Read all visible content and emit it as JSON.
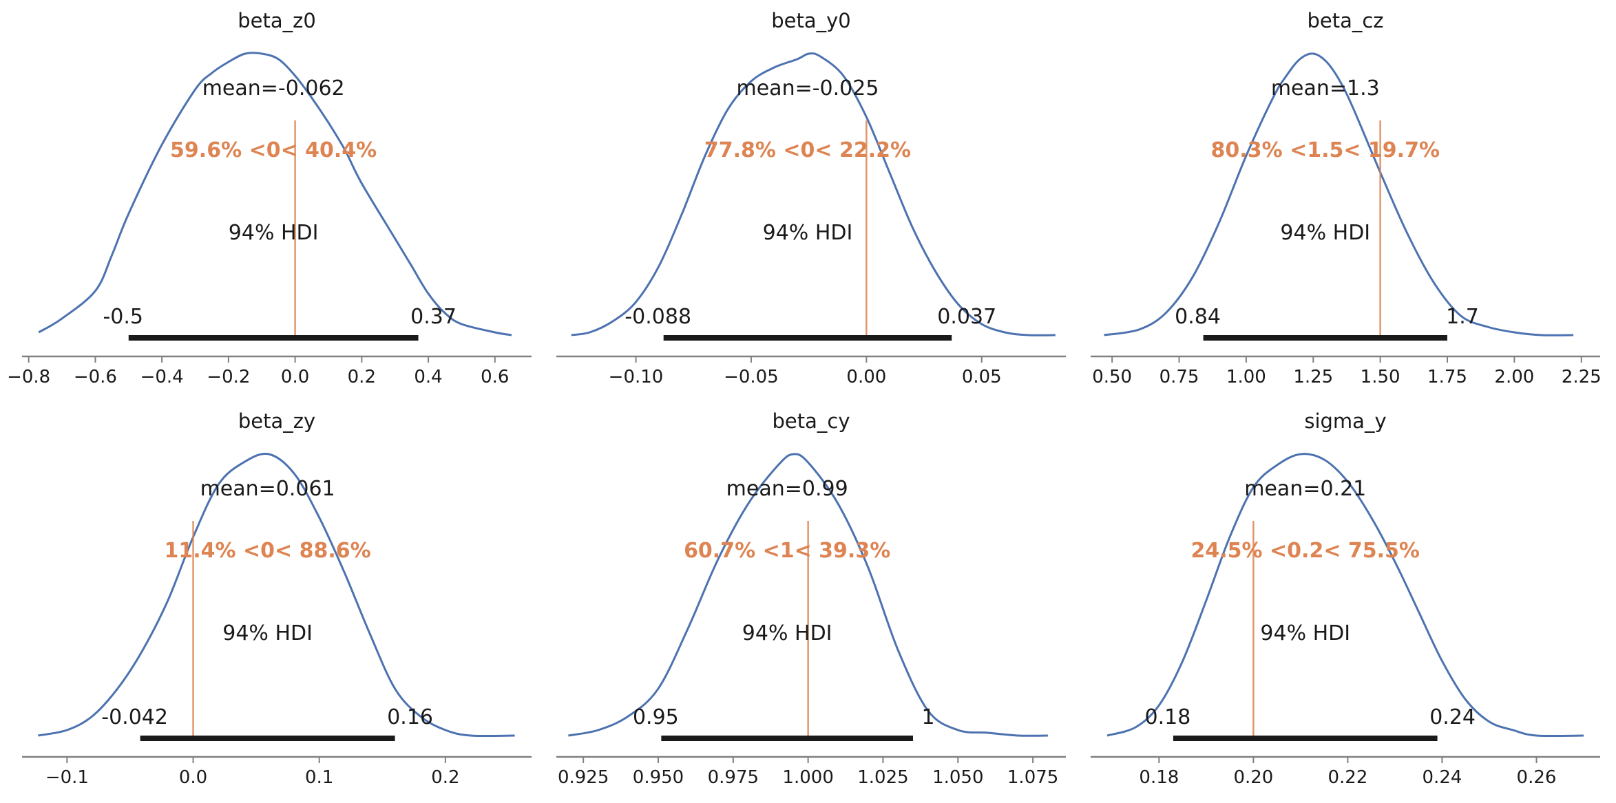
{
  "colors": {
    "density": "#4c72b0",
    "reference": "#dd8452",
    "hdi": "#1a1a1a",
    "axis": "#808080"
  },
  "chart_data": [
    {
      "type": "area",
      "title": "beta_z0",
      "mean_label": "mean=-0.062",
      "ref_value": 0,
      "ref_label": "59.6% <0< 40.4%",
      "hdi_label": "94% HDI",
      "hdi": [
        -0.5,
        0.37
      ],
      "hdi_labels": [
        "-0.5",
        "0.37"
      ],
      "xlim": [
        -0.82,
        0.71
      ],
      "xticks": [
        -0.8,
        -0.6,
        -0.4,
        -0.2,
        0.0,
        0.2,
        0.4,
        0.6
      ],
      "xtick_labels": [
        "−0.8",
        "−0.6",
        "−0.4",
        "−0.2",
        "0.0",
        "0.2",
        "0.4",
        "0.6"
      ],
      "x": [
        -0.77,
        -0.7,
        -0.6,
        -0.55,
        -0.5,
        -0.4,
        -0.3,
        -0.25,
        -0.2,
        -0.15,
        -0.1,
        -0.05,
        0.0,
        0.05,
        0.1,
        0.15,
        0.2,
        0.3,
        0.35,
        0.4,
        0.45,
        0.5,
        0.6,
        0.65
      ],
      "density": [
        0.02,
        0.07,
        0.17,
        0.3,
        0.45,
        0.7,
        0.9,
        0.96,
        1.0,
        1.03,
        1.03,
        1.01,
        0.95,
        0.87,
        0.78,
        0.68,
        0.56,
        0.36,
        0.26,
        0.16,
        0.09,
        0.05,
        0.02,
        0.01
      ]
    },
    {
      "type": "area",
      "title": "beta_y0",
      "mean_label": "mean=-0.025",
      "ref_value": 0,
      "ref_label": "77.8% <0< 22.2%",
      "hdi_label": "94% HDI",
      "hdi": [
        -0.088,
        0.037
      ],
      "hdi_labels": [
        "-0.088",
        "0.037"
      ],
      "xlim": [
        -0.1345,
        0.0865
      ],
      "xticks": [
        -0.1,
        -0.05,
        0.0,
        0.05
      ],
      "xtick_labels": [
        "−0.10",
        "−0.05",
        "0.00",
        "0.05"
      ],
      "x": [
        -0.128,
        -0.12,
        -0.11,
        -0.1,
        -0.09,
        -0.08,
        -0.07,
        -0.06,
        -0.05,
        -0.04,
        -0.03,
        -0.025,
        -0.02,
        -0.01,
        0.0,
        0.01,
        0.02,
        0.03,
        0.04,
        0.05,
        0.06,
        0.07,
        0.082
      ],
      "density": [
        0.01,
        0.02,
        0.06,
        0.13,
        0.26,
        0.45,
        0.66,
        0.83,
        0.93,
        0.98,
        1.01,
        1.03,
        1.02,
        0.95,
        0.8,
        0.6,
        0.4,
        0.24,
        0.12,
        0.05,
        0.02,
        0.01,
        0.01
      ]
    },
    {
      "type": "area",
      "title": "beta_cz",
      "mean_label": "mean=1.3",
      "ref_value": 1.5,
      "ref_label": "80.3% <1.5< 19.7%",
      "hdi_label": "94% HDI",
      "hdi": [
        0.84,
        1.75
      ],
      "hdi_labels": [
        "0.84",
        "1.7"
      ],
      "xlim": [
        0.42,
        2.32
      ],
      "xticks": [
        0.5,
        0.75,
        1.0,
        1.25,
        1.5,
        1.75,
        2.0,
        2.25
      ],
      "xtick_labels": [
        "0.50",
        "0.75",
        "1.00",
        "1.25",
        "1.50",
        "1.75",
        "2.00",
        "2.25"
      ],
      "x": [
        0.47,
        0.6,
        0.7,
        0.8,
        0.9,
        1.0,
        1.1,
        1.15,
        1.2,
        1.25,
        1.3,
        1.35,
        1.4,
        1.5,
        1.6,
        1.7,
        1.8,
        1.9,
        2.0,
        2.1,
        2.22
      ],
      "density": [
        0.01,
        0.03,
        0.09,
        0.22,
        0.42,
        0.66,
        0.87,
        0.95,
        1.01,
        1.03,
        1.0,
        0.93,
        0.83,
        0.6,
        0.38,
        0.2,
        0.08,
        0.04,
        0.02,
        0.01,
        0.01
      ]
    },
    {
      "type": "area",
      "title": "beta_zy",
      "mean_label": "mean=0.061",
      "ref_value": 0,
      "ref_label": "11.4% <0< 88.6%",
      "hdi_label": "94% HDI",
      "hdi": [
        -0.042,
        0.16
      ],
      "hdi_labels": [
        "-0.042",
        "0.16"
      ],
      "xlim": [
        -0.1357,
        0.2683
      ],
      "xticks": [
        -0.1,
        0.0,
        0.1,
        0.2
      ],
      "xtick_labels": [
        "−0.1",
        "0.0",
        "0.1",
        "0.2"
      ],
      "x": [
        -0.123,
        -0.1,
        -0.08,
        -0.06,
        -0.04,
        -0.02,
        0.0,
        0.02,
        0.04,
        0.06,
        0.08,
        0.1,
        0.12,
        0.14,
        0.16,
        0.18,
        0.2,
        0.22,
        0.255
      ],
      "density": [
        0.01,
        0.03,
        0.08,
        0.18,
        0.32,
        0.5,
        0.73,
        0.92,
        1.0,
        1.03,
        0.96,
        0.8,
        0.6,
        0.38,
        0.18,
        0.08,
        0.03,
        0.01,
        0.01
      ]
    },
    {
      "type": "area",
      "title": "beta_cy",
      "mean_label": "mean=0.99",
      "ref_value": 1.0,
      "ref_label": "60.7% <1< 39.3%",
      "hdi_label": "94% HDI",
      "hdi": [
        0.951,
        1.035
      ],
      "hdi_labels": [
        "0.95",
        "1"
      ],
      "xlim": [
        0.916,
        1.086
      ],
      "xticks": [
        0.925,
        0.95,
        0.975,
        1.0,
        1.025,
        1.05,
        1.075
      ],
      "xtick_labels": [
        "0.925",
        "0.950",
        "0.975",
        "1.000",
        "1.025",
        "1.050",
        "1.075"
      ],
      "x": [
        0.92,
        0.93,
        0.94,
        0.95,
        0.96,
        0.97,
        0.98,
        0.99,
        0.995,
        1.0,
        1.01,
        1.02,
        1.03,
        1.04,
        1.05,
        1.06,
        1.07,
        1.08
      ],
      "density": [
        0.01,
        0.03,
        0.08,
        0.18,
        0.4,
        0.65,
        0.85,
        0.99,
        1.03,
        1.0,
        0.85,
        0.62,
        0.32,
        0.1,
        0.03,
        0.02,
        0.01,
        0.01
      ]
    },
    {
      "type": "area",
      "title": "sigma_y",
      "mean_label": "mean=0.21",
      "ref_value": 0.2,
      "ref_label": "24.5% <0.2< 75.5%",
      "hdi_label": "94% HDI",
      "hdi": [
        0.183,
        0.239
      ],
      "hdi_labels": [
        "0.18",
        "0.24"
      ],
      "xlim": [
        0.1655,
        0.2735
      ],
      "xticks": [
        0.18,
        0.2,
        0.22,
        0.24,
        0.26
      ],
      "xtick_labels": [
        "0.18",
        "0.20",
        "0.22",
        "0.24",
        "0.26"
      ],
      "x": [
        0.169,
        0.175,
        0.18,
        0.185,
        0.19,
        0.195,
        0.2,
        0.205,
        0.21,
        0.215,
        0.22,
        0.225,
        0.23,
        0.235,
        0.24,
        0.245,
        0.25,
        0.255,
        0.26,
        0.27
      ],
      "density": [
        0.01,
        0.04,
        0.12,
        0.28,
        0.5,
        0.73,
        0.91,
        0.99,
        1.03,
        1.01,
        0.93,
        0.8,
        0.64,
        0.46,
        0.28,
        0.14,
        0.06,
        0.03,
        0.01,
        0.01
      ]
    }
  ]
}
